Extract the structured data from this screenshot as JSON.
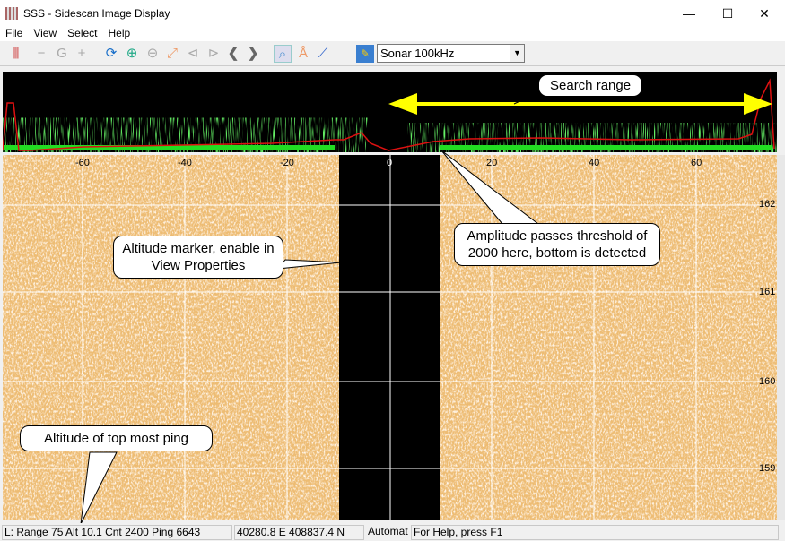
{
  "window": {
    "title": "SSS - Sidescan Image Display",
    "minimize": "—",
    "maximize": "☐",
    "close": "✕"
  },
  "menu": [
    "File",
    "View",
    "Select",
    "Help"
  ],
  "toolbar": {
    "icons": [
      "sliders-icon",
      "minus-icon",
      "gauge-icon",
      "plus-icon",
      "refresh-icon",
      "zoom-in-icon",
      "zoom-out-icon",
      "fit-icon",
      "zoom-prev-icon",
      "zoom-next-icon",
      "back-icon",
      "forward-icon",
      "magnifier-icon",
      "compass-icon",
      "measure-icon",
      "add-layer-icon"
    ],
    "channel": "Sonar 100kHz"
  },
  "axis": {
    "x_ticks": [
      "-60",
      "-40",
      "-20",
      "0",
      "20",
      "40",
      "60"
    ],
    "y_ticks": [
      "162",
      "161",
      "160",
      "159"
    ]
  },
  "callouts": {
    "search": "Search range",
    "altitude_marker": "Altitude marker, enable in View Properties",
    "amplitude": "Amplitude passes threshold of 2000 here, bottom is detected",
    "altitude_top": "Altitude of top most ping"
  },
  "status": {
    "left": "L: Range   75 Alt 10.1 Cnt  2400 Ping 6643",
    "coords": "40280.8 E 408837.4 N",
    "mode": "Automat",
    "help": "For Help, press F1"
  },
  "colors": {
    "sonar": "#d9822b",
    "amplitude_green": "#22dd22",
    "amplitude_red": "#dd1111",
    "arrow": "#ffff00"
  }
}
